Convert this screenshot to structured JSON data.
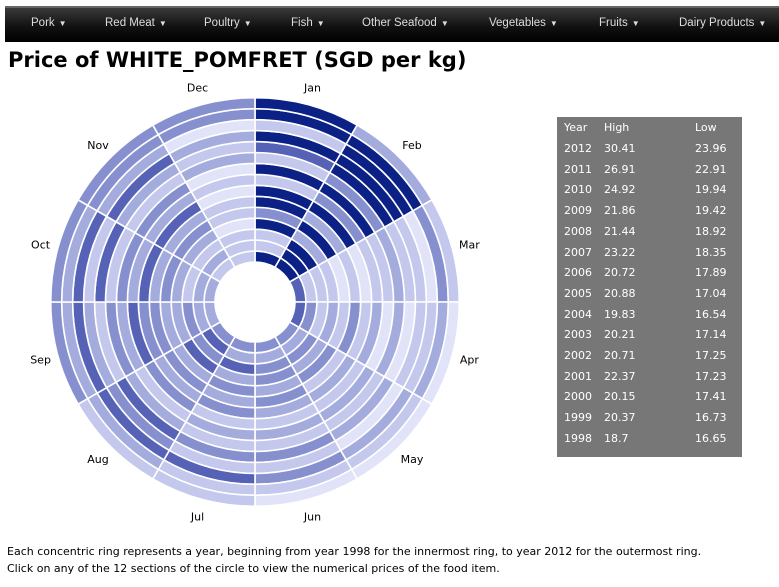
{
  "nav": {
    "items": [
      {
        "label": "Pork"
      },
      {
        "label": "Red Meat"
      },
      {
        "label": "Poultry"
      },
      {
        "label": "Fish"
      },
      {
        "label": "Other Seafood"
      },
      {
        "label": "Vegetables"
      },
      {
        "label": "Fruits"
      },
      {
        "label": "Dairy Products"
      }
    ],
    "caret": "▼"
  },
  "page_title": "Price of WHITE_POMFRET (SGD per kg)",
  "chart_data": {
    "type": "heatmap",
    "layout": "radial",
    "title": "",
    "months": [
      "Jan",
      "Feb",
      "Mar",
      "Apr",
      "May",
      "Jun",
      "Jul",
      "Aug",
      "Sep",
      "Oct",
      "Nov",
      "Dec"
    ],
    "years": [
      1998,
      1999,
      2000,
      2001,
      2002,
      2003,
      2004,
      2005,
      2006,
      2007,
      2008,
      2009,
      2010,
      2011,
      2012
    ],
    "ring_order": "1998 innermost to 2012 outermost",
    "color_scale": [
      "#e1e3f8",
      "#c3c8ec",
      "#a4abdd",
      "#8790cf",
      "#5662b6",
      "#0b2186"
    ],
    "levels_by_month": {
      "Jan": [
        5,
        1,
        1,
        5,
        3,
        5,
        5,
        1,
        5,
        1,
        4,
        5,
        1,
        5,
        5
      ],
      "Feb": [
        5,
        5,
        5,
        2,
        5,
        2,
        5,
        3,
        5,
        3,
        5,
        5,
        5,
        5,
        2
      ],
      "Mar": [
        4,
        1,
        1,
        1,
        0,
        1,
        0,
        1,
        1,
        2,
        1,
        1,
        0,
        3,
        1
      ],
      "Apr": [
        4,
        3,
        1,
        2,
        1,
        3,
        1,
        2,
        0,
        2,
        0,
        1,
        1,
        2,
        0
      ],
      "May": [
        3,
        2,
        3,
        2,
        3,
        1,
        2,
        1,
        2,
        1,
        2,
        0,
        2,
        1,
        0
      ],
      "Jun": [
        3,
        2,
        3,
        3,
        2,
        3,
        2,
        1,
        2,
        1,
        3,
        1,
        3,
        1,
        0
      ],
      "Jul": [
        3,
        2,
        4,
        2,
        3,
        2,
        3,
        1,
        2,
        1,
        3,
        1,
        4,
        1,
        1
      ],
      "Aug": [
        3,
        4,
        3,
        4,
        2,
        3,
        2,
        3,
        1,
        2,
        4,
        3,
        4,
        2,
        1
      ],
      "Sep": [
        2,
        2,
        3,
        2,
        2,
        3,
        3,
        4,
        2,
        3,
        1,
        2,
        4,
        2,
        3
      ],
      "Oct": [
        2,
        2,
        1,
        2,
        3,
        2,
        4,
        2,
        3,
        1,
        4,
        1,
        4,
        2,
        3
      ],
      "Nov": [
        1,
        2,
        1,
        2,
        3,
        2,
        4,
        2,
        3,
        1,
        2,
        4,
        2,
        3,
        3
      ],
      "Dec": [
        1,
        1,
        1,
        0,
        1,
        1,
        0,
        1,
        0,
        2,
        1,
        2,
        0,
        3,
        3
      ]
    }
  },
  "table": {
    "headers": {
      "year": "Year",
      "high": "High",
      "low": "Low"
    },
    "rows": [
      {
        "year": "2012",
        "high": "30.41",
        "low": "23.96"
      },
      {
        "year": "2011",
        "high": "26.91",
        "low": "22.91"
      },
      {
        "year": "2010",
        "high": "24.92",
        "low": "19.94"
      },
      {
        "year": "2009",
        "high": "21.86",
        "low": "19.42"
      },
      {
        "year": "2008",
        "high": "21.44",
        "low": "18.92"
      },
      {
        "year": "2007",
        "high": "23.22",
        "low": "18.35"
      },
      {
        "year": "2006",
        "high": "20.72",
        "low": "17.89"
      },
      {
        "year": "2005",
        "high": "20.88",
        "low": "17.04"
      },
      {
        "year": "2004",
        "high": "19.83",
        "low": "16.54"
      },
      {
        "year": "2003",
        "high": "20.21",
        "low": "17.14"
      },
      {
        "year": "2002",
        "high": "20.71",
        "low": "17.25"
      },
      {
        "year": "2001",
        "high": "22.37",
        "low": "17.23"
      },
      {
        "year": "2000",
        "high": "20.15",
        "low": "17.41"
      },
      {
        "year": "1999",
        "high": "20.37",
        "low": "16.73"
      },
      {
        "year": "1998",
        "high": "18.7",
        "low": "16.65"
      }
    ]
  },
  "footer": {
    "line1": "Each concentric ring represents a year, beginning from year 1998 for the innermost ring, to year 2012 for the outermost ring.",
    "line2": "Click on any of the 12 sections of the circle to view the numerical prices of the food item."
  }
}
